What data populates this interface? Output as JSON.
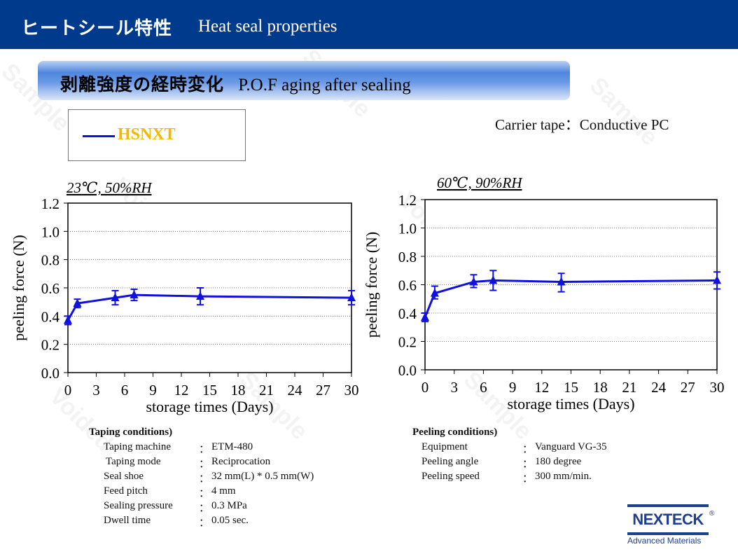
{
  "header": {
    "title": "ヒートシール特性",
    "subtitle": "Heat seal properties"
  },
  "banner": {
    "title_jp": "剥離強度の経時変化",
    "title_en": "P.O.F aging after sealing"
  },
  "legend": {
    "label": "HSNXT",
    "line_color": "#1010e0",
    "label_color": "#f5b800"
  },
  "carrier_tape": "Carrier tape：Conductive PC",
  "watermarks": [
    "Sample",
    "Voided"
  ],
  "chart_data": [
    {
      "type": "line",
      "title": "23℃, 50%RH",
      "xlabel": "storage times (Days)",
      "ylabel": "peeling force (N)",
      "xlim": [
        0,
        30
      ],
      "ylim": [
        0,
        1.2
      ],
      "xticks": [
        "0",
        "3",
        "6",
        "9",
        "12",
        "15",
        "18",
        "21",
        "24",
        "27",
        "30"
      ],
      "yticks": [
        "0.0",
        "0.2",
        "0.4",
        "0.6",
        "0.8",
        "1.0",
        "1.2"
      ],
      "grid": true,
      "series": [
        {
          "name": "HSNXT",
          "x": [
            0,
            1,
            5,
            7,
            14,
            30
          ],
          "y": [
            0.37,
            0.49,
            0.53,
            0.55,
            0.54,
            0.53
          ],
          "err_low": [
            0.34,
            0.46,
            0.48,
            0.51,
            0.48,
            0.48
          ],
          "err_high": [
            0.4,
            0.52,
            0.58,
            0.59,
            0.6,
            0.58
          ]
        }
      ]
    },
    {
      "type": "line",
      "title": "60℃, 90%RH",
      "xlabel": "storage times (Days)",
      "ylabel": "peeling force (N)",
      "xlim": [
        0,
        30
      ],
      "ylim": [
        0,
        1.2
      ],
      "xticks": [
        "0",
        "3",
        "6",
        "9",
        "12",
        "15",
        "18",
        "21",
        "24",
        "27",
        "30"
      ],
      "yticks": [
        "0.0",
        "0.2",
        "0.4",
        "0.6",
        "0.8",
        "1.0",
        "1.2"
      ],
      "grid": true,
      "series": [
        {
          "name": "HSNXT",
          "x": [
            0,
            1,
            5,
            7,
            14,
            30
          ],
          "y": [
            0.37,
            0.54,
            0.62,
            0.63,
            0.62,
            0.63
          ],
          "err_low": [
            0.34,
            0.5,
            0.58,
            0.56,
            0.55,
            0.57
          ],
          "err_high": [
            0.4,
            0.59,
            0.67,
            0.7,
            0.68,
            0.69
          ]
        }
      ]
    }
  ],
  "taping_conditions": {
    "title": "Taping conditions)",
    "rows": [
      {
        "label": "Taping machine",
        "sep": "：",
        "value": "ETM-480"
      },
      {
        "label": "Taping mode",
        "sep": "：",
        "value": "Reciprocation"
      },
      {
        "label": "Seal shoe",
        "sep": "：",
        "value": "32 mm(L) * 0.5 mm(W)"
      },
      {
        "label": "Feed pitch",
        "sep": "：",
        "value": "4 mm"
      },
      {
        "label": "Sealing pressure",
        "sep": "：",
        "value": "0.3 MPa"
      },
      {
        "label": "Dwell time",
        "sep": "：",
        "value": "0.05 sec."
      }
    ]
  },
  "peeling_conditions": {
    "title": "Peeling conditions)",
    "rows": [
      {
        "label": "Equipment",
        "sep": "：",
        "value": "Vanguard VG-35"
      },
      {
        "label": "Peeling angle",
        "sep": "：",
        "value": "180 degree"
      },
      {
        "label": "Peeling speed",
        "sep": "：",
        "value": "300 mm/min."
      }
    ]
  },
  "logo": {
    "name": "NEXTECK",
    "registered": "®",
    "tagline": "Advanced Materials"
  }
}
